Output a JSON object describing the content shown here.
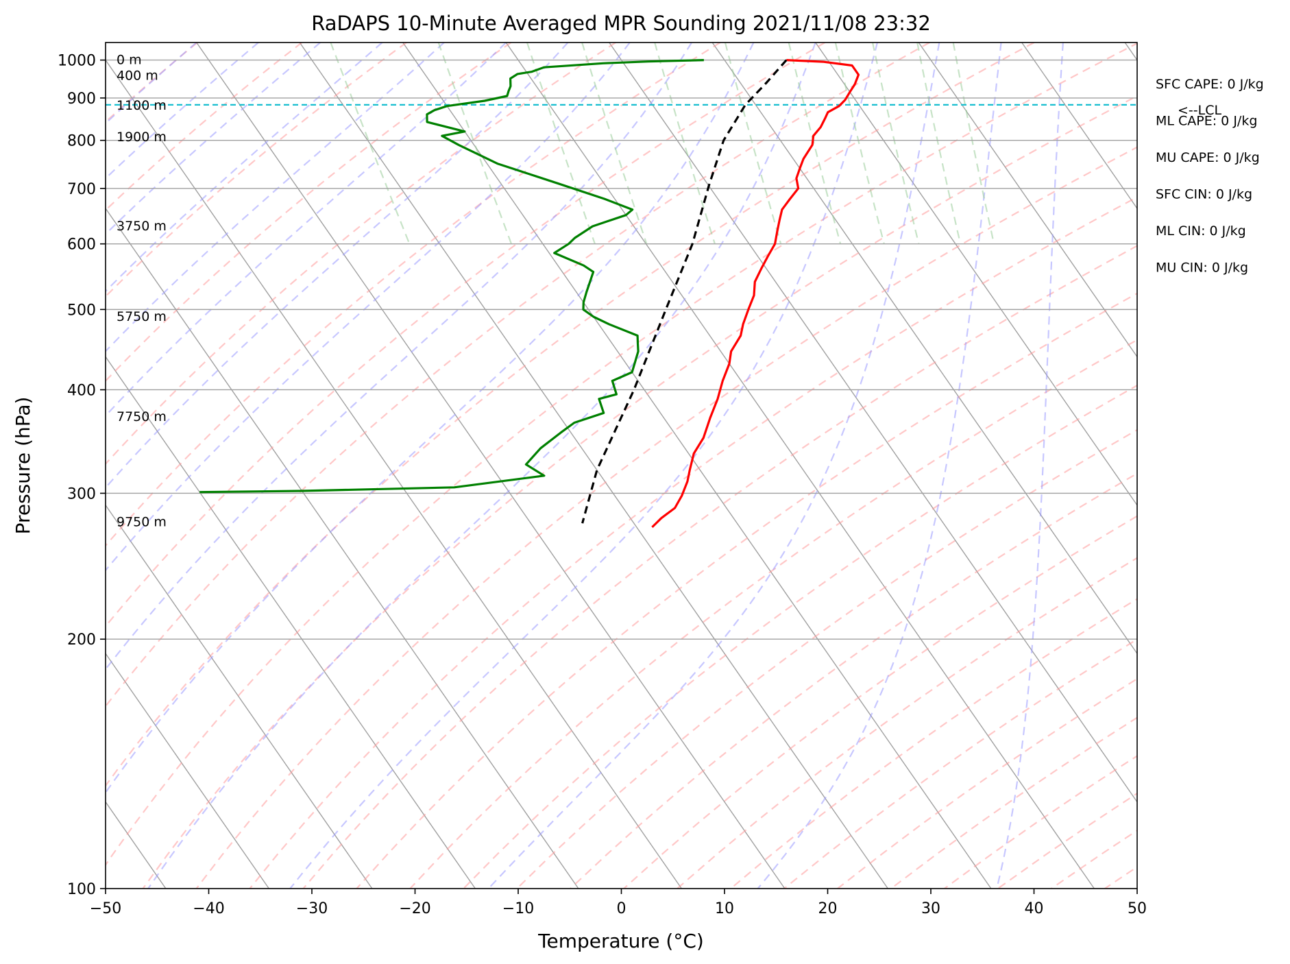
{
  "chart_data": {
    "type": "line",
    "subtype": "skew-t log-p",
    "title": "RaDAPS 10-Minute Averaged MPR Sounding 2021/11/08 23:32",
    "xlabel": "Temperature (°C)",
    "ylabel": "Pressure (hPa)",
    "xlim": [
      -50,
      50
    ],
    "ylim": [
      1050,
      100
    ],
    "y_scale": "log",
    "grid": true,
    "x_ticks": [
      "−50",
      "−40",
      "−30",
      "−20",
      "−10",
      "0",
      "10",
      "20",
      "30",
      "40",
      "50"
    ],
    "y_ticks": [
      "100",
      "200",
      "300",
      "400",
      "500",
      "600",
      "700",
      "800",
      "900",
      "1000"
    ],
    "x_tick_values": [
      -50,
      -40,
      -30,
      -20,
      -10,
      0,
      10,
      20,
      30,
      40,
      50
    ],
    "y_tick_values": [
      100,
      200,
      300,
      400,
      500,
      600,
      700,
      800,
      900,
      1000
    ],
    "colors": {
      "temperature": "#ff0000",
      "dewpoint": "#008000",
      "parcel": "#000000",
      "lcl": "#17becf",
      "isotherm": "#a0a0a0",
      "dry_adiabat": "#ff9999",
      "moist_adiabat": "#9999ff",
      "mixing_ratio": "#99cc99"
    },
    "series": [
      {
        "key": "temperature",
        "points": [
          [
            16.0,
            1000
          ],
          [
            19.5,
            995
          ],
          [
            22.0,
            985
          ],
          [
            22.0,
            960
          ],
          [
            21.0,
            935
          ],
          [
            20.0,
            915
          ],
          [
            19.0,
            895
          ],
          [
            18.0,
            880
          ],
          [
            16.5,
            865
          ],
          [
            15.8,
            850
          ],
          [
            14.8,
            830
          ],
          [
            13.5,
            810
          ],
          [
            12.8,
            790
          ],
          [
            11.0,
            760
          ],
          [
            10.0,
            740
          ],
          [
            9.0,
            720
          ],
          [
            8.5,
            700
          ],
          [
            7.0,
            680
          ],
          [
            5.5,
            660
          ],
          [
            4.5,
            640
          ],
          [
            3.5,
            620
          ],
          [
            2.5,
            600
          ],
          [
            1.0,
            580
          ],
          [
            -0.5,
            560
          ],
          [
            -2.0,
            540
          ],
          [
            -3.0,
            520
          ],
          [
            -4.5,
            500
          ],
          [
            -6.0,
            480
          ],
          [
            -7.0,
            465
          ],
          [
            -9.0,
            445
          ],
          [
            -10.0,
            430
          ],
          [
            -11.8,
            410
          ],
          [
            -13.5,
            390
          ],
          [
            -15.5,
            370
          ],
          [
            -17.5,
            350
          ],
          [
            -19.5,
            335
          ],
          [
            -21.0,
            320
          ],
          [
            -22.0,
            310
          ],
          [
            -23.5,
            298
          ],
          [
            -25.0,
            288
          ],
          [
            -27.0,
            280
          ],
          [
            -28.5,
            273
          ]
        ]
      },
      {
        "key": "dewpoint",
        "points": [
          [
            8.0,
            1000
          ],
          [
            2.5,
            996
          ],
          [
            -2.0,
            991
          ],
          [
            -8.0,
            980
          ],
          [
            -9.5,
            968
          ],
          [
            -11.0,
            962
          ],
          [
            -12.0,
            950
          ],
          [
            -12.5,
            930
          ],
          [
            -13.0,
            918
          ],
          [
            -13.5,
            905
          ],
          [
            -16.0,
            893
          ],
          [
            -20.0,
            880
          ],
          [
            -21.5,
            870
          ],
          [
            -22.5,
            860
          ],
          [
            -23.0,
            842
          ],
          [
            -20.0,
            820
          ],
          [
            -22.5,
            810
          ],
          [
            -21.5,
            790
          ],
          [
            -19.0,
            750
          ],
          [
            -14.5,
            710
          ],
          [
            -11.0,
            680
          ],
          [
            -9.0,
            660
          ],
          [
            -10.0,
            650
          ],
          [
            -14.0,
            630
          ],
          [
            -16.5,
            610
          ],
          [
            -17.5,
            600
          ],
          [
            -19.5,
            585
          ],
          [
            -17.5,
            565
          ],
          [
            -17.0,
            555
          ],
          [
            -19.0,
            525
          ],
          [
            -20.0,
            510
          ],
          [
            -20.5,
            500
          ],
          [
            -20.0,
            490
          ],
          [
            -19.0,
            480
          ],
          [
            -17.0,
            465
          ],
          [
            -17.5,
            455
          ],
          [
            -18.0,
            445
          ],
          [
            -20.0,
            420
          ],
          [
            -22.5,
            410
          ],
          [
            -23.0,
            395
          ],
          [
            -25.0,
            390
          ],
          [
            -25.5,
            375
          ],
          [
            -29.0,
            365
          ],
          [
            -31.0,
            355
          ],
          [
            -34.0,
            340
          ],
          [
            -36.5,
            325
          ],
          [
            -35.5,
            315
          ],
          [
            -45.0,
            305
          ],
          [
            -60.0,
            302
          ],
          [
            -70.0,
            301
          ]
        ]
      },
      {
        "key": "parcel",
        "points": [
          [
            16.0,
            1000
          ],
          [
            12.6,
            940
          ],
          [
            9.0,
            883
          ],
          [
            4.5,
            800
          ],
          [
            0.0,
            705
          ],
          [
            -5.5,
            600
          ],
          [
            -12.5,
            500
          ],
          [
            -21.0,
            400
          ],
          [
            -30.0,
            320
          ],
          [
            -35.0,
            276
          ]
        ]
      }
    ],
    "lcl": {
      "pressure": 883,
      "label": "<--LCL"
    },
    "height_labels": [
      {
        "label": "9750 m",
        "pressure": 277
      },
      {
        "label": "7750 m",
        "pressure": 371
      },
      {
        "label": "5750 m",
        "pressure": 490
      },
      {
        "label": "3750 m",
        "pressure": 630
      },
      {
        "label": "1900 m",
        "pressure": 807
      },
      {
        "label": "1100 m",
        "pressure": 881
      },
      {
        "label": "400 m",
        "pressure": 957
      },
      {
        "label": "0 m",
        "pressure": 1000
      }
    ],
    "indices": [
      {
        "label": "SFC CAPE: 0 J/kg"
      },
      {
        "label": "ML CAPE: 0 J/kg"
      },
      {
        "label": "MU CAPE: 0 J/kg"
      },
      {
        "label": "SFC CIN: 0 J/kg"
      },
      {
        "label": "ML CIN: 0 J/kg"
      },
      {
        "label": "MU CIN: 0 J/kg"
      }
    ]
  }
}
